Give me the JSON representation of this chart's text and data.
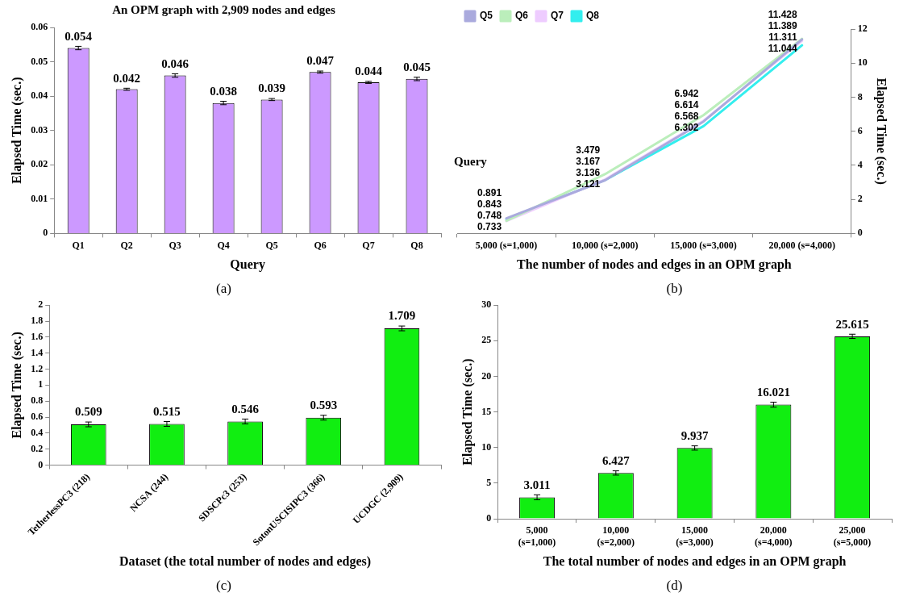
{
  "chart_data": [
    {
      "type": "bar",
      "title": "An OPM graph with 2,909 nodes and edges",
      "xlabel": "Query",
      "ylabel": "Elapsed Time (sec.)",
      "categories": [
        "Q1",
        "Q2",
        "Q3",
        "Q4",
        "Q5",
        "Q6",
        "Q7",
        "Q8"
      ],
      "values": [
        0.054,
        0.042,
        0.046,
        0.038,
        0.039,
        0.047,
        0.044,
        0.045
      ],
      "errors": [
        0.0005,
        0.0003,
        0.0005,
        0.0005,
        0.0003,
        0.0003,
        0.0003,
        0.0005
      ],
      "color": "#cc99ff",
      "ylim": [
        0,
        0.06
      ],
      "yticks": [
        0,
        0.01,
        0.02,
        0.03,
        0.04,
        0.05,
        0.06
      ],
      "data_labels": true,
      "grid": false,
      "annotations": [
        "(a)"
      ]
    },
    {
      "type": "line",
      "xlabel": "The number of nodes and edges in an OPM graph",
      "y2label": "Elapsed Time (sec.)",
      "categories": [
        "5,000 (s=1,000)",
        "10,000 (s=2,000)",
        "15,000 (s=3,000)",
        "20,000 (s=4,000)"
      ],
      "series": [
        {
          "name": "Q5",
          "color": "#aaaadd",
          "values": [
            0.891,
            3.121,
            6.568,
            11.389
          ],
          "axis": "y2"
        },
        {
          "name": "Q6",
          "color": "#bbeebb",
          "values": [
            0.748,
            3.479,
            6.942,
            11.428
          ],
          "axis": "y2"
        },
        {
          "name": "Q7",
          "color": "#eeccff",
          "values": [
            0.733,
            3.167,
            6.614,
            11.311
          ],
          "axis": "y2"
        },
        {
          "name": "Q8",
          "color": "#33eeee",
          "values": [
            0.843,
            3.136,
            6.302,
            11.044
          ],
          "axis": "y2"
        }
      ],
      "y2lim": [
        0,
        12
      ],
      "y2ticks": [
        0,
        2,
        4,
        6,
        8,
        10,
        12
      ],
      "data_labels": true,
      "legend": "top left",
      "grid": false,
      "annotations": [
        "Query",
        "(b)"
      ]
    },
    {
      "type": "bar",
      "xlabel": "Dataset (the total number of nodes and edges)",
      "ylabel": "Elapsed Time (sec.)",
      "categories": [
        "TetherlessPC3 (218)",
        "NCSA (244)",
        "SDSCPc3 (253)",
        "SotonUSCISIPC3 (366)",
        "UCDGC (2,909)"
      ],
      "values": [
        0.509,
        0.515,
        0.546,
        0.593,
        1.709
      ],
      "errors": [
        0.03,
        0.03,
        0.03,
        0.03,
        0.03
      ],
      "color": "#11ee11",
      "ylim": [
        0,
        2
      ],
      "yticks": [
        0,
        0.2,
        0.4,
        0.6,
        0.8,
        1,
        1.2,
        1.4,
        1.6,
        1.8,
        2
      ],
      "data_labels": true,
      "grid": false,
      "annotations": [
        "(c)"
      ]
    },
    {
      "type": "bar",
      "xlabel": "The total number of nodes and edges in an OPM graph",
      "ylabel": "Elapsed Time (sec.)",
      "categories": [
        "5,000\n(s=1,000)",
        "10,000\n(s=2,000)",
        "15,000\n(s=3,000)",
        "20,000\n(s=4,000)",
        "25,000\n(s=5,000)"
      ],
      "values": [
        3.011,
        6.427,
        9.937,
        16.021,
        25.615
      ],
      "errors": [
        0.35,
        0.3,
        0.3,
        0.35,
        0.3
      ],
      "color": "#11ee11",
      "ylim": [
        0,
        30
      ],
      "yticks": [
        0,
        5,
        10,
        15,
        20,
        25,
        30
      ],
      "data_labels": true,
      "grid": false,
      "annotations": [
        "(d)"
      ]
    }
  ]
}
